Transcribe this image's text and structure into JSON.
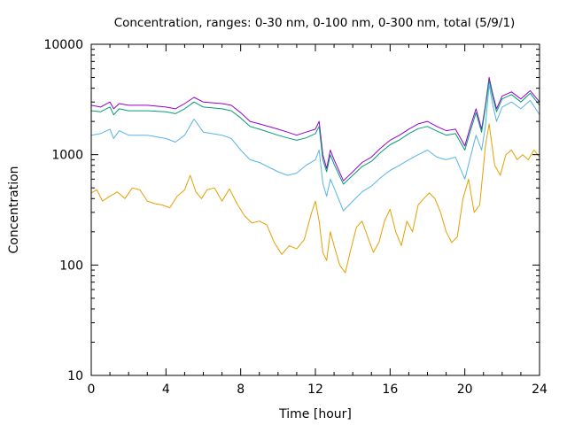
{
  "chart_data": {
    "type": "line",
    "title": "Concentration, ranges: 0-30 nm, 0-100 nm, 0-300 nm, total (5/9/1)",
    "xlabel": "Time [hour]",
    "ylabel": "Concentration",
    "xlim": [
      0,
      24
    ],
    "ylim": [
      10,
      10000
    ],
    "yscale": "log",
    "grid": false,
    "legend": "none",
    "x_ticks": [
      0,
      4,
      8,
      12,
      16,
      20,
      24
    ],
    "x_tick_labels": [
      "0",
      "4",
      "8",
      "12",
      "16",
      "20",
      "24"
    ],
    "y_ticks": [
      10,
      100,
      1000,
      10000
    ],
    "y_tick_labels": [
      "10",
      "100",
      "1000",
      "10000"
    ],
    "series": [
      {
        "color": "#9400d3",
        "x": [
          0,
          0.5,
          1,
          1.2,
          1.5,
          2,
          3,
          4,
          4.5,
          5,
          5.5,
          6,
          7,
          7.5,
          8,
          8.5,
          9,
          10,
          10.5,
          11,
          11.5,
          12,
          12.2,
          12.4,
          12.6,
          12.8,
          13,
          13.5,
          14,
          14.5,
          15,
          15.5,
          16,
          16.5,
          17,
          17.5,
          18,
          18.5,
          19,
          19.5,
          20,
          20.3,
          20.6,
          20.9,
          21.1,
          21.3,
          21.5,
          21.7,
          22,
          22.5,
          23,
          23.5,
          24
        ],
        "y": [
          2800,
          2700,
          3000,
          2600,
          2900,
          2800,
          2800,
          2700,
          2600,
          2900,
          3300,
          3000,
          2900,
          2800,
          2400,
          2000,
          1900,
          1700,
          1600,
          1500,
          1600,
          1700,
          2000,
          1000,
          750,
          1100,
          900,
          580,
          700,
          850,
          950,
          1150,
          1350,
          1500,
          1700,
          1900,
          2000,
          1800,
          1650,
          1700,
          1200,
          1800,
          2600,
          1700,
          2800,
          5000,
          3500,
          2600,
          3400,
          3700,
          3200,
          3800,
          3000
        ]
      },
      {
        "color": "#009e73",
        "x": [
          0,
          0.5,
          1,
          1.2,
          1.5,
          2,
          3,
          4,
          4.5,
          5,
          5.5,
          6,
          7,
          7.5,
          8,
          8.5,
          9,
          10,
          10.5,
          11,
          11.5,
          12,
          12.2,
          12.4,
          12.6,
          12.8,
          13,
          13.5,
          14,
          14.5,
          15,
          15.5,
          16,
          16.5,
          17,
          17.5,
          18,
          18.5,
          19,
          19.5,
          20,
          20.3,
          20.6,
          20.9,
          21.1,
          21.3,
          21.5,
          21.7,
          22,
          22.5,
          23,
          23.5,
          24
        ],
        "y": [
          2500,
          2450,
          2700,
          2300,
          2600,
          2500,
          2500,
          2450,
          2350,
          2600,
          3000,
          2700,
          2600,
          2500,
          2150,
          1800,
          1700,
          1500,
          1420,
          1350,
          1420,
          1550,
          1800,
          900,
          700,
          1000,
          820,
          540,
          650,
          780,
          870,
          1050,
          1230,
          1360,
          1550,
          1720,
          1800,
          1640,
          1500,
          1550,
          1100,
          1650,
          2400,
          1600,
          2650,
          4700,
          3300,
          2450,
          3200,
          3500,
          3000,
          3600,
          2800
        ]
      },
      {
        "color": "#56b4e9",
        "x": [
          0,
          0.5,
          1,
          1.2,
          1.5,
          2,
          3,
          4,
          4.5,
          5,
          5.5,
          6,
          7,
          7.5,
          8,
          8.5,
          9,
          10,
          10.5,
          11,
          11.5,
          12,
          12.2,
          12.4,
          12.6,
          12.8,
          13,
          13.5,
          14,
          14.5,
          15,
          15.5,
          16,
          16.5,
          17,
          17.5,
          18,
          18.5,
          19,
          19.5,
          20,
          20.3,
          20.6,
          20.9,
          21.1,
          21.3,
          21.5,
          21.7,
          22,
          22.5,
          23,
          23.5,
          24
        ],
        "y": [
          1500,
          1550,
          1700,
          1400,
          1650,
          1500,
          1500,
          1400,
          1300,
          1500,
          2100,
          1600,
          1500,
          1400,
          1100,
          900,
          850,
          700,
          650,
          680,
          800,
          900,
          1100,
          550,
          420,
          600,
          500,
          310,
          380,
          460,
          520,
          620,
          720,
          800,
          900,
          1000,
          1100,
          950,
          900,
          950,
          600,
          950,
          1500,
          1100,
          1800,
          4300,
          2800,
          2000,
          2700,
          3000,
          2600,
          3100,
          2300
        ]
      },
      {
        "color": "#e69f00",
        "x": [
          0,
          0.3,
          0.6,
          1,
          1.4,
          1.8,
          2.2,
          2.6,
          3,
          3.4,
          3.8,
          4.2,
          4.6,
          5,
          5.3,
          5.6,
          5.9,
          6.2,
          6.6,
          7,
          7.4,
          7.8,
          8.2,
          8.6,
          9,
          9.4,
          9.8,
          10.2,
          10.6,
          11,
          11.4,
          11.8,
          12,
          12.2,
          12.4,
          12.6,
          12.8,
          13,
          13.3,
          13.6,
          13.9,
          14.2,
          14.5,
          14.8,
          15.1,
          15.4,
          15.7,
          16,
          16.3,
          16.6,
          16.9,
          17.2,
          17.5,
          17.8,
          18.1,
          18.4,
          18.7,
          19,
          19.3,
          19.6,
          19.9,
          20.2,
          20.5,
          20.8,
          21.1,
          21.3,
          21.6,
          21.9,
          22.2,
          22.5,
          22.8,
          23.1,
          23.4,
          23.7,
          24
        ],
        "y": [
          450,
          480,
          380,
          420,
          460,
          400,
          500,
          480,
          380,
          360,
          350,
          330,
          420,
          480,
          650,
          460,
          400,
          480,
          500,
          380,
          490,
          360,
          280,
          240,
          250,
          230,
          160,
          125,
          150,
          140,
          170,
          300,
          380,
          250,
          130,
          110,
          200,
          150,
          100,
          85,
          140,
          220,
          250,
          180,
          130,
          160,
          250,
          320,
          200,
          150,
          250,
          200,
          350,
          400,
          450,
          400,
          300,
          200,
          160,
          180,
          400,
          600,
          300,
          350,
          1200,
          1900,
          800,
          650,
          1000,
          1100,
          900,
          1000,
          900,
          1100,
          950
        ]
      }
    ]
  }
}
